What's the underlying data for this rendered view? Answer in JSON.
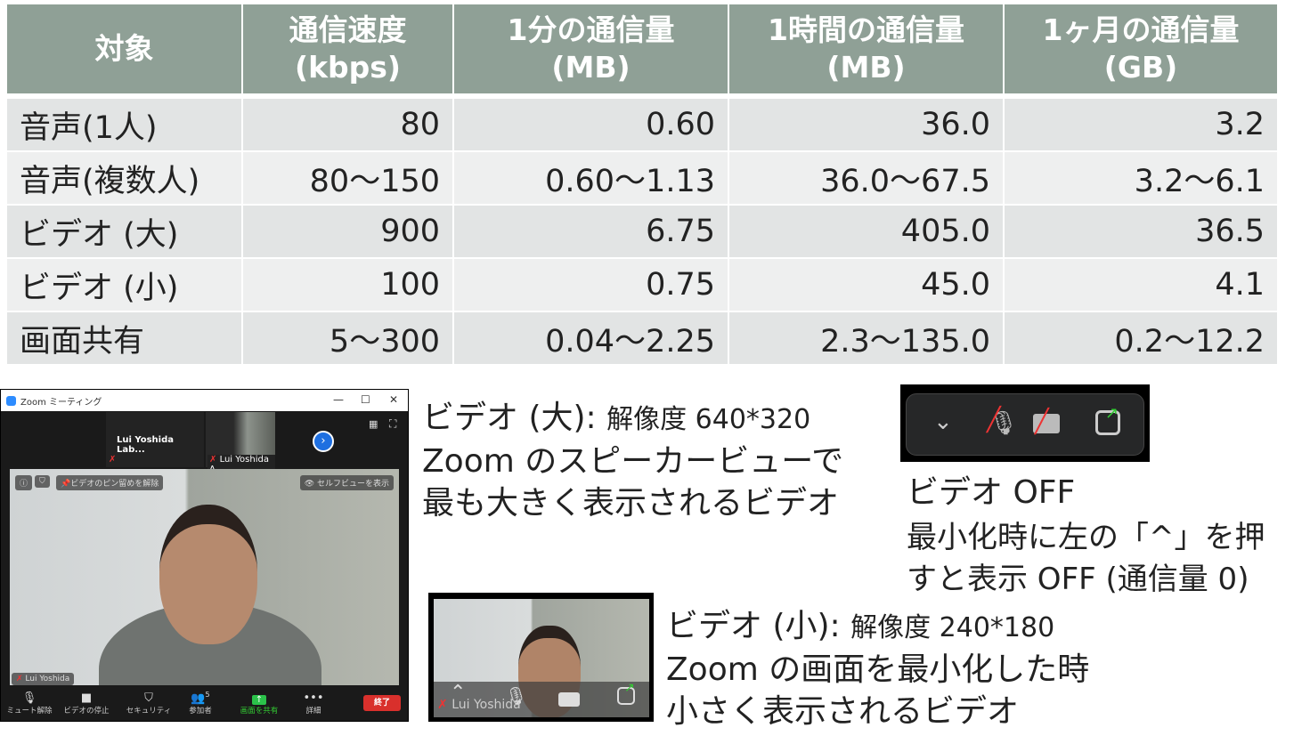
{
  "table": {
    "headers": [
      [
        "対象",
        ""
      ],
      [
        "通信速度",
        "(kbps)"
      ],
      [
        "1分の通信量",
        "(MB)"
      ],
      [
        "1時間の通信量",
        "(MB)"
      ],
      [
        "1ヶ月の通信量",
        "(GB)"
      ]
    ],
    "rows": [
      [
        "音声(1人)",
        "80",
        "0.60",
        "36.0",
        "3.2"
      ],
      [
        "音声(複数人)",
        "80〜150",
        "0.60〜1.13",
        "36.0〜67.5",
        "3.2〜6.1"
      ],
      [
        "ビデオ (大)",
        "900",
        "6.75",
        "405.0",
        "36.5"
      ],
      [
        "ビデオ (小)",
        "100",
        "0.75",
        "45.0",
        "4.1"
      ],
      [
        "画面共有",
        "5〜300",
        "0.04〜2.25",
        "2.3〜135.0",
        "0.2〜12.2"
      ]
    ],
    "header_color": "#8fa096"
  },
  "notes": {
    "large": {
      "title": "ビデオ (大):",
      "resolution": "解像度 640*320",
      "line2": "Zoom のスピーカービューで",
      "line3": "最も大きく表示されるビデオ"
    },
    "off": {
      "title": "ビデオ OFF",
      "line2": "最小化時に左の「^」を押",
      "line3": "すと表示 OFF (通信量 0)"
    },
    "small": {
      "title": "ビデオ (小):",
      "resolution": "解像度 240*180",
      "line2": "Zoom の画面を最小化した時",
      "line3": "小さく表示されるビデオ"
    }
  },
  "zoom_window": {
    "title": "Zoom ミーティング",
    "thumb1": "Lui Yoshida Lab...",
    "thumb2": "Lui Yoshida A...",
    "unpin": "ビデオのピン留めを解除",
    "self_view": "セルフビューを表示",
    "speaker_name": "Lui Yoshida",
    "toolbar": {
      "unmute": "ミュート解除",
      "stop_video": "ビデオの停止",
      "security": "セキュリティ",
      "participants": "参加者",
      "participants_count": "5",
      "share": "画面を共有",
      "more": "詳細",
      "end": "終了"
    }
  },
  "mini_window": {
    "name": "Lui Yoshida"
  }
}
